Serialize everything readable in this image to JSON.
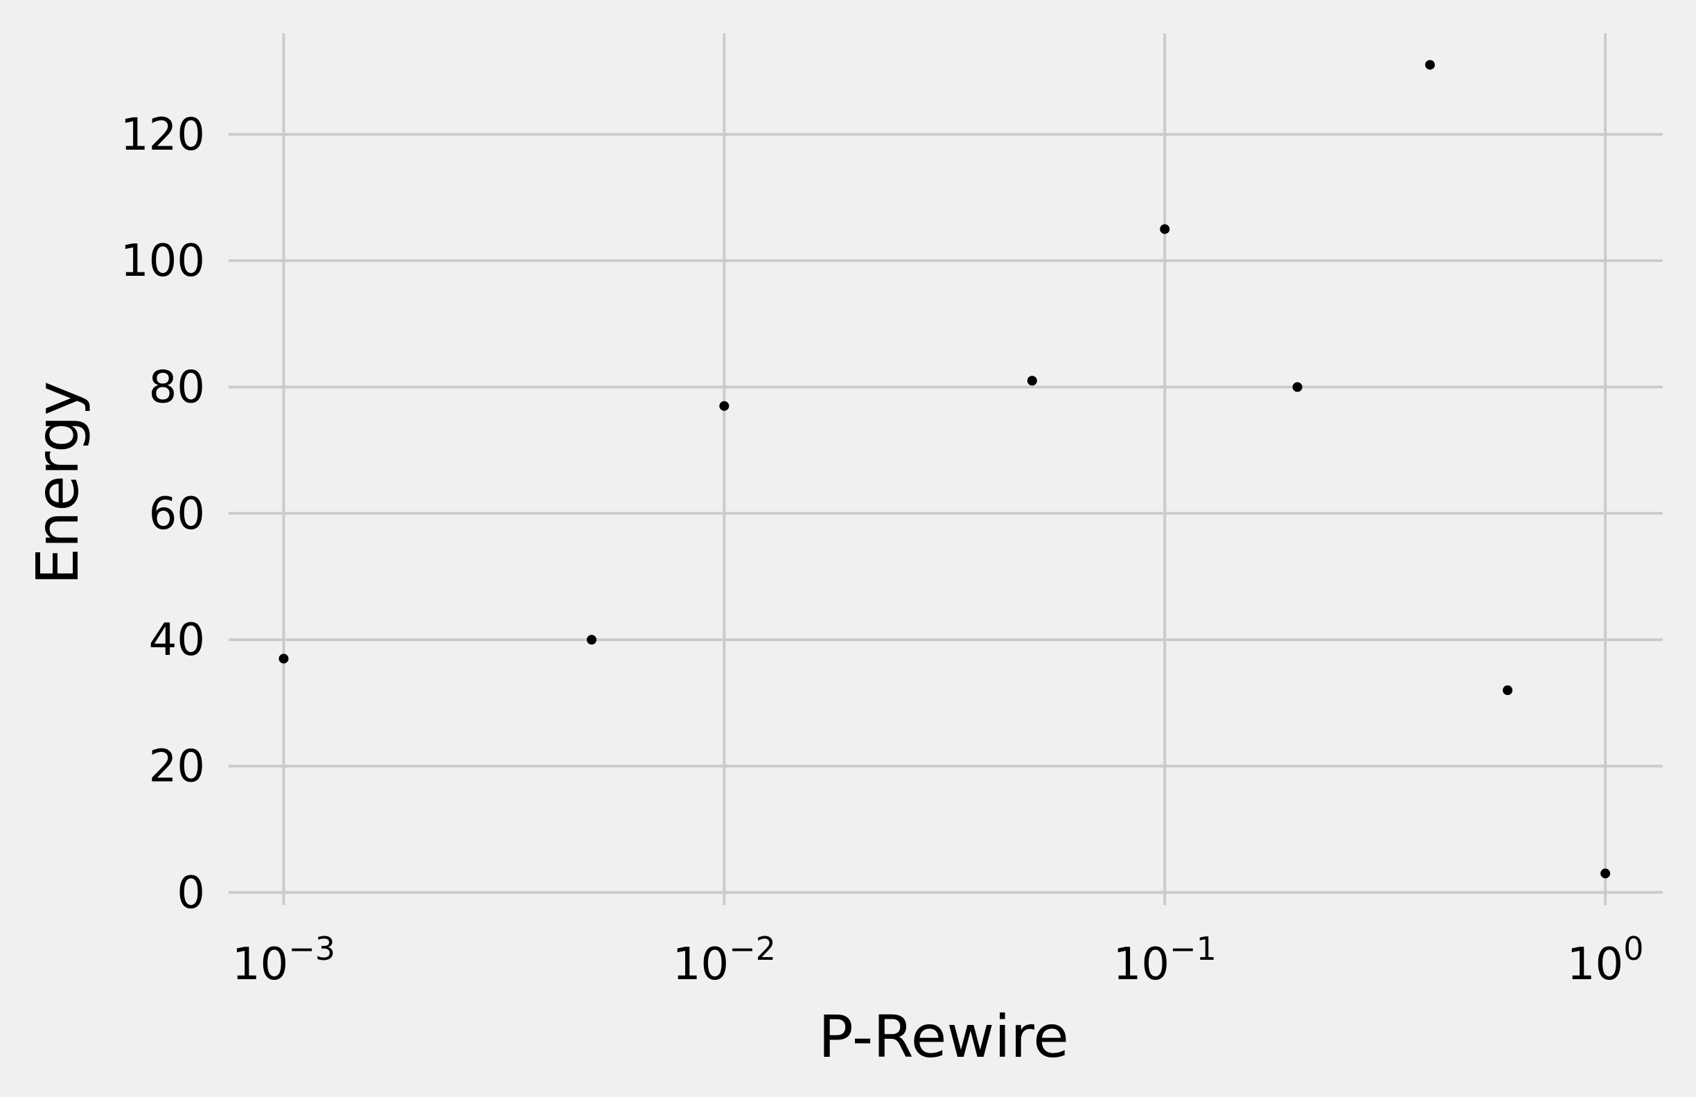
{
  "chart_data": {
    "type": "scatter",
    "title": "",
    "xlabel": "P-Rewire",
    "ylabel": "Energy",
    "xscale": "log",
    "xlim": [
      0.00075,
      1.35
    ],
    "ylim": [
      -2,
      136
    ],
    "grid": true,
    "x_ticks": [
      {
        "value": 0.001,
        "base": "10",
        "exp": "−3"
      },
      {
        "value": 0.01,
        "base": "10",
        "exp": "−2"
      },
      {
        "value": 0.1,
        "base": "10",
        "exp": "−1"
      },
      {
        "value": 1,
        "base": "10",
        "exp": "0"
      }
    ],
    "y_ticks": [
      {
        "value": 0,
        "label": "0"
      },
      {
        "value": 20,
        "label": "20"
      },
      {
        "value": 40,
        "label": "40"
      },
      {
        "value": 60,
        "label": "60"
      },
      {
        "value": 80,
        "label": "80"
      },
      {
        "value": 100,
        "label": "100"
      },
      {
        "value": 120,
        "label": "120"
      }
    ],
    "points": [
      {
        "x": 0.001,
        "y": 37
      },
      {
        "x": 0.005,
        "y": 40
      },
      {
        "x": 0.01,
        "y": 77
      },
      {
        "x": 0.05,
        "y": 81
      },
      {
        "x": 0.1,
        "y": 105
      },
      {
        "x": 0.2,
        "y": 80
      },
      {
        "x": 0.4,
        "y": 131
      },
      {
        "x": 0.6,
        "y": 32
      },
      {
        "x": 1.0,
        "y": 3
      }
    ],
    "marker_color": "#000000",
    "grid_color": "#cbcbcb",
    "background_color": "#f0f0f0"
  }
}
